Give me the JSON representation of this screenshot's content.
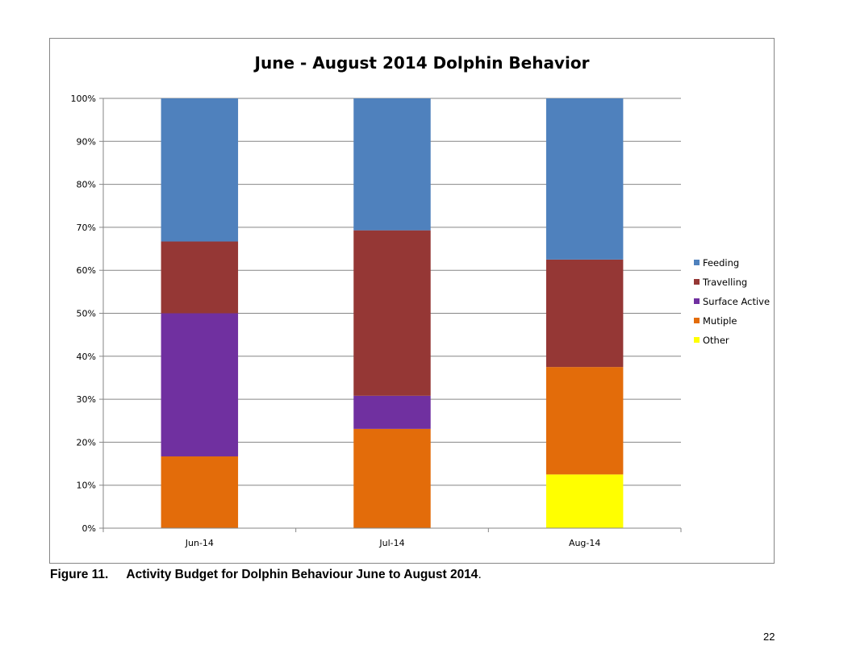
{
  "chart_data": {
    "type": "bar",
    "stacked": "percent",
    "title": "June - August 2014 Dolphin Behavior",
    "xlabel": "",
    "ylabel": "",
    "categories": [
      "Jun-14",
      "Jul-14",
      "Aug-14"
    ],
    "ylim": [
      0,
      100
    ],
    "yticks": [
      "0%",
      "10%",
      "20%",
      "30%",
      "40%",
      "50%",
      "60%",
      "70%",
      "80%",
      "90%",
      "100%"
    ],
    "grid": true,
    "legend_position": "right",
    "series": [
      {
        "name": "Other",
        "color": "#FFFF00",
        "values": [
          0,
          0,
          12.5
        ]
      },
      {
        "name": "Mutiple",
        "color": "#E36C0A",
        "values": [
          16.7,
          23.1,
          25.0
        ]
      },
      {
        "name": "Surface Active",
        "color": "#7030A0",
        "values": [
          33.3,
          7.7,
          0
        ]
      },
      {
        "name": "Travelling",
        "color": "#953735",
        "values": [
          16.7,
          38.5,
          25.0
        ]
      },
      {
        "name": "Feeding",
        "color": "#4F81BD",
        "values": [
          33.3,
          30.7,
          37.5
        ]
      }
    ],
    "legend_order": [
      "Feeding",
      "Travelling",
      "Surface Active",
      "Mutiple",
      "Other"
    ]
  },
  "caption": {
    "label": "Figure 11.",
    "text": "Activity Budget for Dolphin Behaviour June to August 2014",
    "suffix": "."
  },
  "page_number": "22"
}
